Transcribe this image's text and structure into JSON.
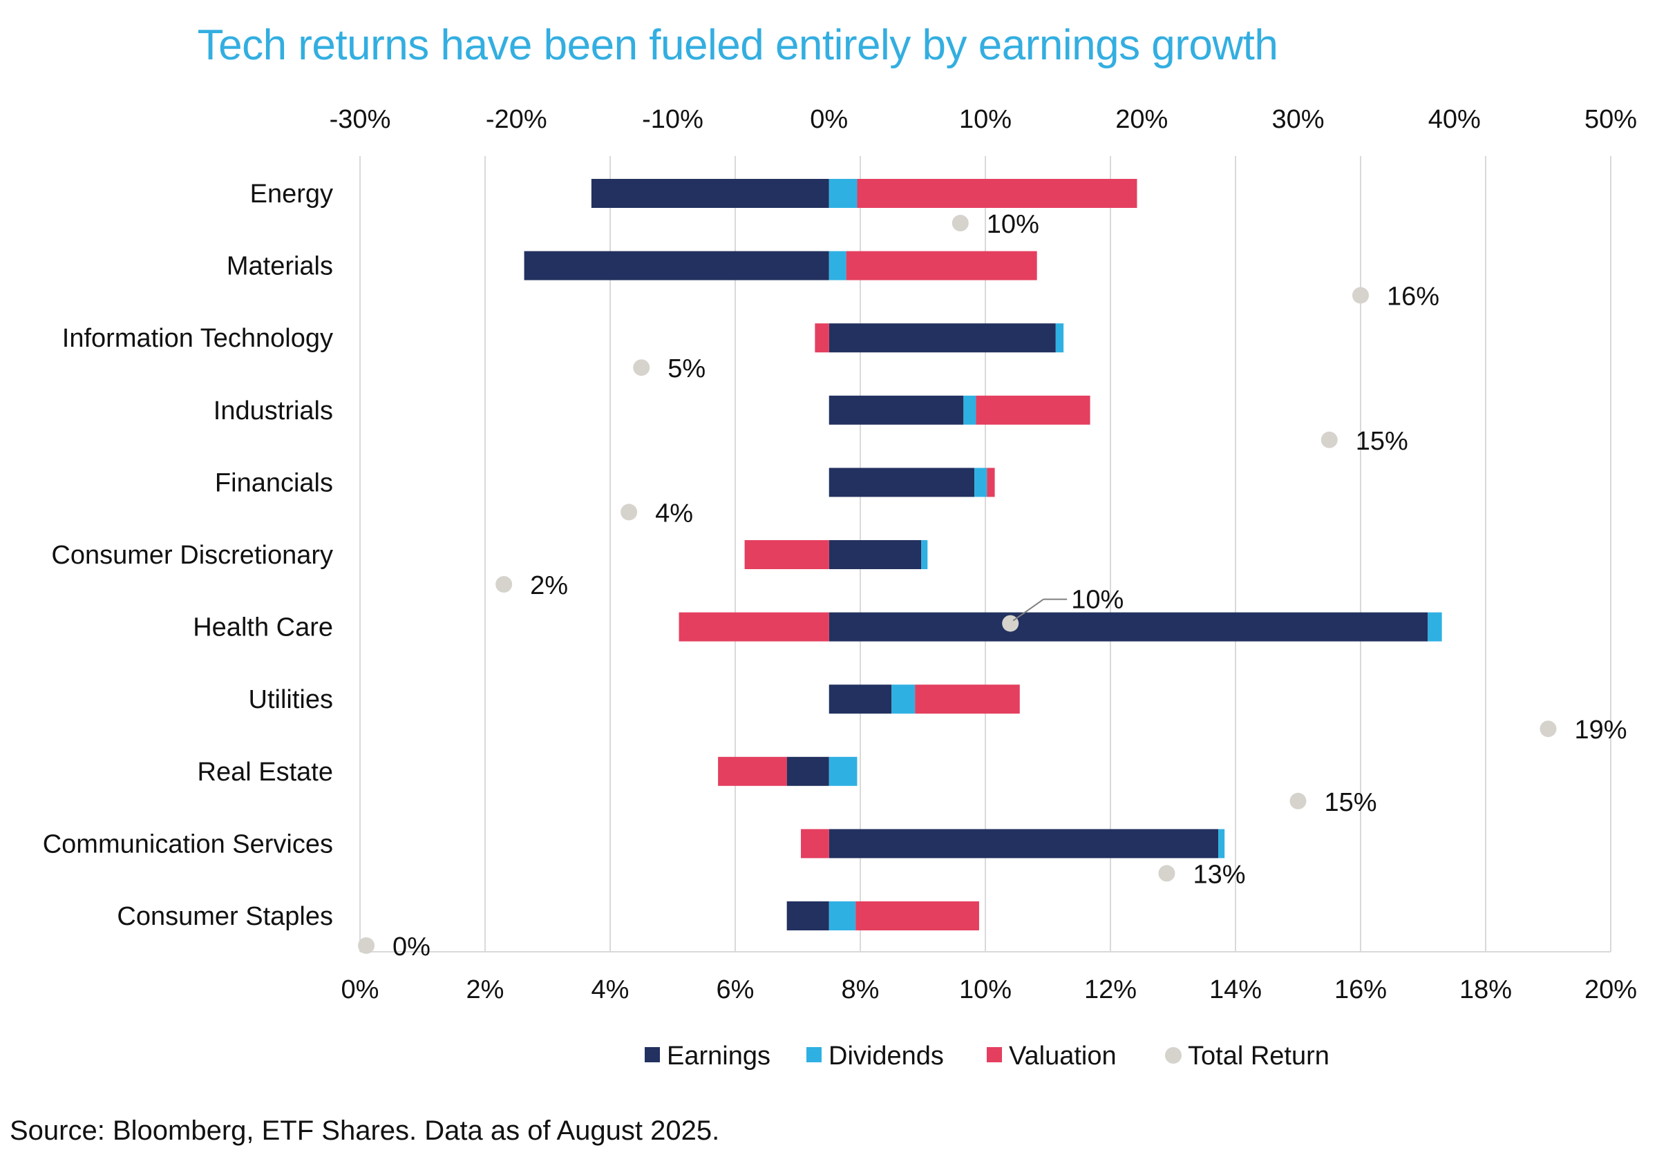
{
  "title": "Tech returns have been fueled entirely by earnings growth",
  "source": "Source: Bloomberg, ETF Shares. Data as of August 2025.",
  "colors": {
    "earnings": "#22315f",
    "dividends": "#2fb0e2",
    "valuation": "#e43f5f",
    "total_return": "#d6d3cd",
    "title": "#33aee0",
    "grid": "#d9d9d9"
  },
  "chart_data": {
    "type": "bar",
    "orientation": "horizontal-stacked",
    "title": "Tech returns have been fueled entirely by earnings growth",
    "categories": [
      "Energy",
      "Materials",
      "Information Technology",
      "Industrials",
      "Financials",
      "Consumer Discretionary",
      "Health Care",
      "Utilities",
      "Real Estate",
      "Communication Services",
      "Consumer Staples"
    ],
    "top_axis": {
      "range": [
        -30,
        50
      ],
      "ticks": [
        -30,
        -20,
        -10,
        0,
        10,
        20,
        30,
        40,
        50
      ],
      "tick_labels": [
        "-30%",
        "-20%",
        "-10%",
        "0%",
        "10%",
        "20%",
        "30%",
        "40%",
        "50%"
      ],
      "applies_to": "stacked bars"
    },
    "bottom_axis": {
      "range": [
        0,
        20
      ],
      "ticks": [
        0,
        2,
        4,
        6,
        8,
        10,
        12,
        14,
        16,
        18,
        20
      ],
      "tick_labels": [
        "0%",
        "2%",
        "4%",
        "6%",
        "8%",
        "10%",
        "12%",
        "14%",
        "16%",
        "18%",
        "20%"
      ],
      "applies_to": "Total Return markers"
    },
    "grid": true,
    "legend_position": "bottom-center",
    "legend": [
      "Earnings",
      "Dividends",
      "Valuation",
      "Total Return"
    ],
    "series": [
      {
        "name": "Earnings",
        "values": [
          -15.2,
          -19.5,
          14.5,
          8.6,
          9.3,
          5.9,
          38.3,
          4.0,
          -2.7,
          24.9,
          -2.7
        ]
      },
      {
        "name": "Dividends",
        "values": [
          1.8,
          1.1,
          0.5,
          0.8,
          0.8,
          0.4,
          0.9,
          1.5,
          1.8,
          0.4,
          1.7
        ]
      },
      {
        "name": "Valuation",
        "values": [
          17.9,
          12.2,
          -0.9,
          7.3,
          0.5,
          -5.4,
          -9.6,
          6.7,
          -4.4,
          -1.8,
          7.9
        ]
      },
      {
        "name": "Total Return",
        "values": [
          9.6,
          16.0,
          4.5,
          15.5,
          4.3,
          2.3,
          10.4,
          19.0,
          15.0,
          12.9,
          0.1
        ],
        "labels": [
          "10%",
          "16%",
          "5%",
          "15%",
          "4%",
          "2%",
          "10%",
          "19%",
          "15%",
          "13%",
          "0%"
        ]
      }
    ]
  }
}
